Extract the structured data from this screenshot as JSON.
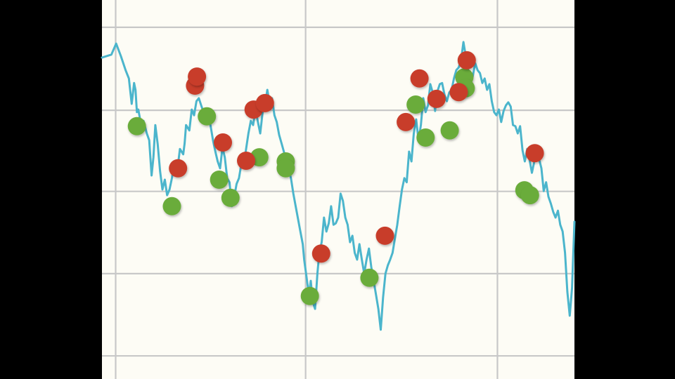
{
  "chart_data": {
    "type": "line",
    "title": "",
    "xlabel": "",
    "ylabel": "",
    "grid": true,
    "legend": "none",
    "xlim": [
      0,
      100
    ],
    "ylim": [
      0,
      100
    ],
    "grid_x": [
      2.9,
      43.1,
      83.7
    ],
    "grid_y": [
      6.1,
      27.8,
      49.5,
      70.9,
      92.8
    ],
    "colors": {
      "background": "#fdfcf5",
      "grid": "#c8c8c8",
      "line": "#4bb5cc",
      "buy_marker": "#6aac3a",
      "sell_marker": "#c83c2c",
      "outside": "#000000"
    },
    "series": [
      {
        "values": [
          [
            0,
            84.8
          ],
          [
            2,
            85.6
          ],
          [
            3,
            88.5
          ],
          [
            4,
            85.2
          ],
          [
            5,
            81.5
          ],
          [
            5.7,
            79.3
          ],
          [
            6.3,
            72.6
          ],
          [
            6.8,
            78.1
          ],
          [
            7.1,
            76.3
          ],
          [
            7.4,
            70.4
          ],
          [
            7.7,
            71.1
          ],
          [
            8.3,
            67.0
          ],
          [
            8.8,
            68.1
          ],
          [
            9.5,
            64.8
          ],
          [
            10,
            63.0
          ],
          [
            10.5,
            53.7
          ],
          [
            10.9,
            58.5
          ],
          [
            11.3,
            67.0
          ],
          [
            11.8,
            61.9
          ],
          [
            12.3,
            54.8
          ],
          [
            12.8,
            50.0
          ],
          [
            13.3,
            52.6
          ],
          [
            13.8,
            48.5
          ],
          [
            14.3,
            50.0
          ],
          [
            14.8,
            53.0
          ],
          [
            15.3,
            57.0
          ],
          [
            16,
            55.6
          ],
          [
            16.5,
            60.7
          ],
          [
            17.2,
            59.3
          ],
          [
            17.5,
            62.2
          ],
          [
            17.8,
            67.0
          ],
          [
            18.5,
            65.6
          ],
          [
            19,
            71.1
          ],
          [
            19.5,
            69.6
          ],
          [
            20,
            73.3
          ],
          [
            20.5,
            74.1
          ],
          [
            21,
            72.2
          ],
          [
            21.5,
            70.4
          ],
          [
            22,
            68.1
          ],
          [
            22.5,
            70.0
          ],
          [
            23,
            66.7
          ],
          [
            23.5,
            63.0
          ],
          [
            24,
            60.0
          ],
          [
            24.5,
            57.4
          ],
          [
            25,
            55.6
          ],
          [
            25.5,
            61.1
          ],
          [
            26,
            58.5
          ],
          [
            26.5,
            53.0
          ],
          [
            27,
            51.9
          ],
          [
            27.5,
            45.6
          ],
          [
            28,
            48.1
          ],
          [
            28.5,
            51.5
          ],
          [
            29,
            53.0
          ],
          [
            29.5,
            56.7
          ],
          [
            30,
            55.9
          ],
          [
            30.5,
            60.7
          ],
          [
            31,
            64.8
          ],
          [
            31.5,
            68.1
          ],
          [
            32,
            67.0
          ],
          [
            32.5,
            71.1
          ],
          [
            33,
            67.8
          ],
          [
            33.5,
            64.8
          ],
          [
            34,
            70.4
          ],
          [
            34.5,
            72.2
          ],
          [
            35,
            76.3
          ],
          [
            35.5,
            72.6
          ],
          [
            36,
            74.1
          ],
          [
            36.5,
            69.6
          ],
          [
            37,
            67.8
          ],
          [
            37.5,
            64.4
          ],
          [
            38,
            62.2
          ],
          [
            38.5,
            60.0
          ],
          [
            39,
            57.4
          ],
          [
            39.5,
            55.6
          ],
          [
            40,
            53.0
          ],
          [
            40.5,
            48.9
          ],
          [
            41,
            45.6
          ],
          [
            41.5,
            42.2
          ],
          [
            42,
            38.9
          ],
          [
            42.5,
            35.6
          ],
          [
            42.8,
            31.5
          ],
          [
            43.2,
            27.8
          ],
          [
            43.8,
            22.2
          ],
          [
            44.2,
            25.9
          ],
          [
            44.6,
            20.4
          ],
          [
            45.1,
            18.5
          ],
          [
            45.6,
            27.8
          ],
          [
            46,
            33.3
          ],
          [
            46.5,
            36.1
          ],
          [
            47,
            42.6
          ],
          [
            47.5,
            38.9
          ],
          [
            48,
            41.1
          ],
          [
            48.5,
            45.6
          ],
          [
            49,
            40.7
          ],
          [
            49.5,
            41.1
          ],
          [
            50,
            42.6
          ],
          [
            50.5,
            48.9
          ],
          [
            51,
            47.0
          ],
          [
            51.5,
            42.6
          ],
          [
            52,
            40.7
          ],
          [
            52.5,
            36.1
          ],
          [
            53,
            37.8
          ],
          [
            53.5,
            33.3
          ],
          [
            54,
            31.5
          ],
          [
            54.5,
            35.6
          ],
          [
            55,
            31.5
          ],
          [
            55.5,
            27.8
          ],
          [
            56,
            31.5
          ],
          [
            56.5,
            34.4
          ],
          [
            57,
            29.6
          ],
          [
            57.5,
            25.9
          ],
          [
            58,
            22.2
          ],
          [
            58.5,
            18.5
          ],
          [
            59,
            13.0
          ],
          [
            59.5,
            21.5
          ],
          [
            60,
            27.8
          ],
          [
            60.5,
            30.0
          ],
          [
            61,
            31.5
          ],
          [
            61.5,
            33.3
          ],
          [
            62,
            37.0
          ],
          [
            62.5,
            40.7
          ],
          [
            63,
            45.6
          ],
          [
            63.5,
            50.0
          ],
          [
            64,
            53.0
          ],
          [
            64.5,
            51.9
          ],
          [
            65,
            60.0
          ],
          [
            65.5,
            57.4
          ],
          [
            66,
            64.8
          ],
          [
            66.5,
            68.5
          ],
          [
            67,
            63.0
          ],
          [
            67.5,
            67.0
          ],
          [
            68,
            74.1
          ],
          [
            68.5,
            70.4
          ],
          [
            69,
            72.2
          ],
          [
            69.5,
            77.8
          ],
          [
            70,
            75.6
          ],
          [
            70.5,
            70.7
          ],
          [
            71,
            75.9
          ],
          [
            71.5,
            77.8
          ],
          [
            72,
            78.1
          ],
          [
            72.5,
            75.0
          ],
          [
            73,
            73.3
          ],
          [
            73.5,
            75.6
          ],
          [
            74,
            76.3
          ],
          [
            74.5,
            79.3
          ],
          [
            75,
            81.5
          ],
          [
            75.5,
            82.2
          ],
          [
            76,
            84.1
          ],
          [
            76.5,
            88.9
          ],
          [
            77,
            85.2
          ],
          [
            77.5,
            81.5
          ],
          [
            78,
            77.8
          ],
          [
            78.5,
            80.0
          ],
          [
            79,
            83.3
          ],
          [
            79.5,
            81.5
          ],
          [
            80,
            80.7
          ],
          [
            80.5,
            78.1
          ],
          [
            81,
            79.3
          ],
          [
            81.5,
            76.3
          ],
          [
            82,
            77.8
          ],
          [
            82.5,
            73.3
          ],
          [
            83,
            70.4
          ],
          [
            83.5,
            69.6
          ],
          [
            84,
            71.1
          ],
          [
            84.5,
            67.8
          ],
          [
            85,
            70.7
          ],
          [
            85.5,
            72.2
          ],
          [
            86,
            73.0
          ],
          [
            86.5,
            71.9
          ],
          [
            87,
            67.0
          ],
          [
            87.5,
            66.7
          ],
          [
            88,
            64.8
          ],
          [
            88.5,
            66.7
          ],
          [
            89,
            60.4
          ],
          [
            89.5,
            57.4
          ],
          [
            90,
            60.7
          ],
          [
            90.5,
            57.8
          ],
          [
            91,
            54.4
          ],
          [
            91.5,
            57.4
          ],
          [
            92,
            59.3
          ],
          [
            92.5,
            58.1
          ],
          [
            93,
            55.6
          ],
          [
            93.5,
            49.6
          ],
          [
            94,
            51.9
          ],
          [
            94.5,
            48.1
          ],
          [
            95,
            46.3
          ],
          [
            95.5,
            44.1
          ],
          [
            96,
            42.6
          ],
          [
            96.5,
            44.4
          ],
          [
            97,
            40.7
          ],
          [
            97.5,
            38.9
          ],
          [
            98,
            33.3
          ],
          [
            98.5,
            23.0
          ],
          [
            99,
            16.7
          ],
          [
            99.5,
            24.1
          ],
          [
            100,
            41.5
          ]
        ]
      }
    ],
    "markers": {
      "buy": [
        [
          7.4,
          66.7
        ],
        [
          14.8,
          45.6
        ],
        [
          22.2,
          69.3
        ],
        [
          24.8,
          52.6
        ],
        [
          27.2,
          47.8
        ],
        [
          33.3,
          58.5
        ],
        [
          38.9,
          57.4
        ],
        [
          38.9,
          55.6
        ],
        [
          44.0,
          21.9
        ],
        [
          56.6,
          26.7
        ],
        [
          66.4,
          72.4
        ],
        [
          68.5,
          63.7
        ],
        [
          73.6,
          65.6
        ],
        [
          76.7,
          79.6
        ],
        [
          77.0,
          76.7
        ],
        [
          89.4,
          49.8
        ],
        [
          90.6,
          48.5
        ]
      ],
      "sell": [
        [
          16.1,
          55.6
        ],
        [
          19.7,
          77.4
        ],
        [
          20.1,
          79.8
        ],
        [
          25.6,
          62.4
        ],
        [
          30.5,
          57.6
        ],
        [
          32.1,
          71.1
        ],
        [
          34.5,
          72.8
        ],
        [
          46.4,
          33.1
        ],
        [
          59.9,
          37.8
        ],
        [
          64.3,
          67.8
        ],
        [
          67.2,
          79.3
        ],
        [
          70.8,
          73.9
        ],
        [
          75.5,
          75.7
        ],
        [
          77.2,
          84.1
        ],
        [
          91.6,
          59.6
        ]
      ]
    }
  }
}
